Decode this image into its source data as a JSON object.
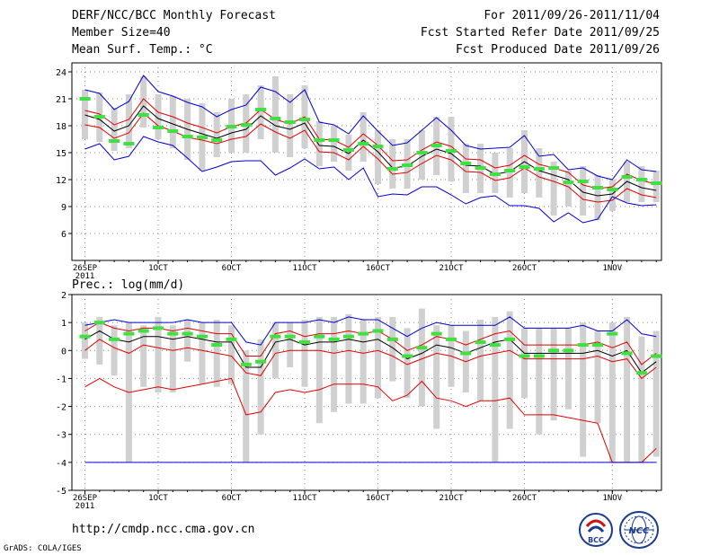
{
  "header": {
    "title": "DERF/NCC/BCC Monthly Forecast",
    "member_size": "Member Size=40",
    "temp_label": "Mean Surf. Temp.: °C",
    "period": "For 2011/09/26-2011/11/04",
    "start_date": "Fcst Started Refer Date 2011/09/25",
    "produce_date": "Fcst Produced Date 2011/09/26"
  },
  "footer": {
    "url": "http://cmdp.ncc.cma.gov.cn",
    "grads": "GrADS: COLA/IGES",
    "logo_bcc": "BCC",
    "logo_ncc": "NCC"
  },
  "colors": {
    "ensemble_mean": "#000000",
    "one_sigma": "#e00000",
    "extreme": "#0000d0",
    "member_range": "#d0d0d0",
    "climate": "#40e040"
  },
  "chart_data": [
    {
      "type": "line",
      "title": "Mean Surf. Temp.: °C",
      "ylabel": "°C",
      "ylim": [
        3,
        25
      ],
      "yticks": [
        6,
        9,
        12,
        15,
        18,
        21,
        24
      ],
      "xticks": [
        {
          "day": 0,
          "label": "26SEP",
          "sub": "2011"
        },
        {
          "day": 5,
          "label": "1OCT",
          "sub": ""
        },
        {
          "day": 10,
          "label": "6OCT",
          "sub": ""
        },
        {
          "day": 15,
          "label": "11OCT",
          "sub": ""
        },
        {
          "day": 20,
          "label": "16OCT",
          "sub": ""
        },
        {
          "day": 25,
          "label": "21OCT",
          "sub": ""
        },
        {
          "day": 30,
          "label": "26OCT",
          "sub": ""
        },
        {
          "day": 36,
          "label": "1NOV",
          "sub": ""
        }
      ],
      "n_days": 40,
      "series": [
        {
          "name": "ensemble mean",
          "role": "mean",
          "values": [
            19.2,
            18.7,
            17.4,
            18.0,
            20.2,
            18.8,
            18.2,
            17.6,
            17.1,
            16.6,
            17.2,
            17.6,
            19.1,
            18.0,
            17.6,
            18.3,
            15.8,
            15.7,
            14.9,
            16.4,
            15.1,
            13.3,
            13.5,
            14.6,
            15.4,
            14.9,
            13.6,
            13.5,
            12.6,
            12.9,
            14.0,
            13.0,
            12.5,
            12.0,
            10.6,
            10.2,
            10.4,
            11.8,
            11.1,
            10.8
          ]
        },
        {
          "name": "+1 sigma",
          "role": "upper",
          "values": [
            19.7,
            19.3,
            18.1,
            18.7,
            21.0,
            19.5,
            19.0,
            18.3,
            17.8,
            17.2,
            17.9,
            18.3,
            19.8,
            18.7,
            18.2,
            19.0,
            16.5,
            16.4,
            15.6,
            17.1,
            15.8,
            14.1,
            14.2,
            15.3,
            16.2,
            15.7,
            14.3,
            14.2,
            13.3,
            13.6,
            14.7,
            13.7,
            13.3,
            12.8,
            11.4,
            11.0,
            11.2,
            12.6,
            11.9,
            11.5
          ]
        },
        {
          "name": "-1 sigma",
          "role": "lower",
          "values": [
            18.1,
            17.8,
            16.6,
            17.2,
            19.4,
            18.0,
            17.4,
            16.7,
            16.4,
            16.0,
            16.5,
            16.8,
            18.2,
            17.3,
            16.6,
            17.5,
            15.1,
            15.0,
            14.2,
            15.7,
            14.3,
            12.6,
            12.8,
            13.8,
            14.7,
            14.2,
            12.9,
            12.8,
            11.9,
            12.2,
            13.3,
            12.3,
            11.8,
            11.2,
            9.8,
            9.5,
            9.7,
            11.0,
            10.3,
            10.0
          ]
        },
        {
          "name": "maximum",
          "role": "max",
          "values": [
            22.0,
            21.6,
            19.8,
            20.7,
            23.6,
            21.8,
            21.3,
            20.6,
            20.1,
            19.0,
            19.8,
            20.3,
            22.3,
            21.8,
            20.6,
            22.0,
            18.4,
            18.1,
            17.1,
            19.1,
            17.4,
            15.8,
            16.1,
            17.5,
            18.9,
            17.5,
            15.8,
            15.4,
            15.5,
            15.6,
            16.9,
            14.6,
            14.8,
            13.1,
            13.3,
            12.4,
            12.0,
            14.2,
            13.1,
            12.9
          ]
        },
        {
          "name": "minimum",
          "role": "min",
          "values": [
            15.4,
            16.0,
            14.2,
            14.6,
            16.8,
            16.2,
            15.8,
            14.4,
            12.9,
            13.4,
            14.0,
            14.1,
            14.1,
            12.5,
            13.3,
            14.3,
            13.2,
            13.4,
            12.0,
            13.3,
            10.1,
            10.4,
            10.3,
            11.2,
            11.2,
            10.3,
            9.3,
            10.0,
            10.2,
            9.1,
            9.1,
            8.8,
            7.3,
            8.3,
            7.2,
            7.6,
            10.1,
            9.4,
            9.1,
            9.2
          ]
        },
        {
          "name": "climate",
          "role": "climate",
          "values": [
            21.0,
            19.0,
            16.3,
            16.0,
            19.2,
            17.8,
            17.4,
            16.8,
            16.7,
            16.4,
            17.9,
            18.1,
            19.8,
            18.8,
            18.4,
            18.7,
            16.4,
            16.4,
            15.3,
            16.0,
            15.7,
            13.2,
            13.6,
            15.0,
            15.8,
            15.2,
            13.8,
            13.3,
            12.6,
            13.0,
            13.4,
            13.2,
            13.3,
            11.7,
            11.8,
            11.1,
            10.9,
            12.3,
            12.0,
            11.6
          ]
        }
      ],
      "member_range": {
        "low": [
          16.5,
          16.2,
          15.2,
          15.5,
          17.8,
          16.5,
          15.5,
          14.2,
          13.0,
          14.5,
          15.0,
          15.0,
          16.5,
          15.0,
          14.5,
          15.5,
          13.5,
          14.0,
          13.0,
          14.0,
          11.5,
          11.0,
          11.0,
          12.0,
          12.5,
          11.8,
          10.5,
          10.5,
          10.5,
          10.0,
          10.5,
          10.0,
          8.0,
          9.0,
          8.0,
          7.5,
          8.5,
          9.5,
          9.5,
          9.5
        ],
        "high": [
          22.0,
          21.7,
          20.0,
          21.5,
          23.5,
          21.5,
          21.3,
          21.0,
          20.5,
          19.5,
          21.0,
          21.5,
          22.5,
          23.5,
          21.5,
          22.5,
          18.5,
          18.0,
          17.0,
          19.5,
          17.5,
          16.5,
          16.5,
          17.5,
          19.0,
          19.0,
          16.0,
          16.0,
          15.0,
          15.5,
          17.5,
          15.5,
          14.0,
          13.0,
          13.5,
          12.5,
          12.0,
          14.0,
          13.5,
          13.0
        ]
      }
    },
    {
      "type": "line",
      "title": "Prec.: log(mm/d)",
      "ylabel": "log(mm/d)",
      "ylim": [
        -5,
        2
      ],
      "yticks": [
        -5,
        -4,
        -3,
        -2,
        -1,
        0,
        1,
        2
      ],
      "xticks": [
        {
          "day": 0,
          "label": "26SEP",
          "sub": "2011"
        },
        {
          "day": 5,
          "label": "1OCT",
          "sub": ""
        },
        {
          "day": 10,
          "label": "6OCT",
          "sub": ""
        },
        {
          "day": 15,
          "label": "11OCT",
          "sub": ""
        },
        {
          "day": 20,
          "label": "16OCT",
          "sub": ""
        },
        {
          "day": 25,
          "label": "21OCT",
          "sub": ""
        },
        {
          "day": 30,
          "label": "26OCT",
          "sub": ""
        },
        {
          "day": 36,
          "label": "1NOV",
          "sub": ""
        }
      ],
      "n_days": 40,
      "series": [
        {
          "name": "ensemble mean",
          "role": "mean",
          "values": [
            0.4,
            0.7,
            0.4,
            0.3,
            0.5,
            0.5,
            0.4,
            0.5,
            0.4,
            0.3,
            0.3,
            -0.6,
            -0.6,
            0.3,
            0.4,
            0.2,
            0.3,
            0.3,
            0.4,
            0.3,
            0.4,
            0.1,
            -0.3,
            -0.1,
            0.2,
            0.1,
            -0.1,
            0.1,
            0.3,
            0.4,
            -0.1,
            -0.1,
            -0.1,
            -0.1,
            -0.1,
            0.0,
            -0.2,
            0.0,
            -0.8,
            -0.4
          ]
        },
        {
          "name": "+1 sigma",
          "role": "upper",
          "values": [
            0.7,
            1.0,
            0.8,
            0.7,
            0.8,
            0.8,
            0.7,
            0.8,
            0.7,
            0.6,
            0.6,
            -0.2,
            -0.2,
            0.6,
            0.7,
            0.5,
            0.6,
            0.6,
            0.7,
            0.6,
            0.7,
            0.4,
            0.0,
            0.2,
            0.5,
            0.4,
            0.2,
            0.4,
            0.6,
            0.7,
            0.2,
            0.2,
            0.2,
            0.2,
            0.2,
            0.3,
            0.1,
            0.3,
            -0.5,
            -0.1
          ]
        },
        {
          "name": "-1 sigma",
          "role": "lower",
          "values": [
            0.0,
            0.4,
            0.1,
            -0.1,
            0.2,
            0.1,
            0.0,
            0.1,
            0.0,
            -0.1,
            -0.2,
            -0.8,
            -0.9,
            -0.1,
            0.0,
            0.0,
            0.0,
            -0.1,
            0.0,
            -0.1,
            0.0,
            -0.2,
            -0.5,
            -0.3,
            -0.1,
            -0.2,
            -0.4,
            -0.2,
            -0.1,
            0.0,
            -0.3,
            -0.3,
            -0.3,
            -0.3,
            -0.3,
            -0.2,
            -0.4,
            -0.3,
            -1.0,
            -0.6
          ]
        },
        {
          "name": "lower envelope",
          "role": "lower2",
          "values": [
            -1.3,
            -1.0,
            -1.3,
            -1.5,
            -1.4,
            -1.3,
            -1.4,
            -1.3,
            -1.2,
            -1.1,
            -1.0,
            -2.3,
            -2.2,
            -1.5,
            -1.4,
            -1.5,
            -1.4,
            -1.2,
            -1.2,
            -1.2,
            -1.3,
            -1.8,
            -1.6,
            -1.1,
            -1.7,
            -1.8,
            -2.0,
            -1.8,
            -1.8,
            -1.7,
            -2.3,
            -2.3,
            -2.3,
            -2.4,
            -2.5,
            -2.6,
            -4.0,
            -4.0,
            -4.0,
            -3.5
          ]
        },
        {
          "name": "maximum",
          "role": "max",
          "values": [
            0.9,
            1.0,
            1.1,
            1.0,
            1.0,
            1.0,
            1.0,
            1.1,
            1.0,
            1.0,
            1.0,
            0.3,
            0.2,
            1.0,
            1.0,
            1.0,
            1.1,
            1.0,
            1.2,
            1.1,
            1.1,
            0.8,
            0.5,
            0.8,
            1.0,
            0.9,
            0.9,
            0.9,
            0.9,
            1.2,
            0.8,
            0.8,
            0.8,
            0.8,
            0.9,
            0.7,
            0.7,
            1.1,
            0.6,
            0.5
          ]
        },
        {
          "name": "minimum",
          "role": "min",
          "values": [
            -4.0,
            -4.0,
            -4.0,
            -4.0,
            -4.0,
            -4.0,
            -4.0,
            -4.0,
            -4.0,
            -4.0,
            -4.0,
            -4.0,
            -4.0,
            -4.0,
            -4.0,
            -4.0,
            -4.0,
            -4.0,
            -4.0,
            -4.0,
            -4.0,
            -4.0,
            -4.0,
            -4.0,
            -4.0,
            -4.0,
            -4.0,
            -4.0,
            -4.0,
            -4.0,
            -4.0,
            -4.0,
            -4.0,
            -4.0,
            -4.0,
            -4.0,
            -4.0,
            -4.0,
            -4.0,
            -4.0
          ]
        },
        {
          "name": "climate",
          "role": "climate",
          "values": [
            0.5,
            1.0,
            0.4,
            0.6,
            0.7,
            0.8,
            0.6,
            0.6,
            0.5,
            0.2,
            0.4,
            -0.5,
            -0.4,
            0.5,
            0.5,
            0.3,
            0.5,
            0.4,
            0.5,
            0.6,
            0.7,
            0.4,
            -0.2,
            0.1,
            0.6,
            0.4,
            -0.1,
            0.3,
            0.2,
            0.4,
            -0.2,
            -0.2,
            0.0,
            0.0,
            0.2,
            0.2,
            0.6,
            -0.1,
            -0.8,
            -0.2
          ]
        }
      ],
      "member_range": {
        "low": [
          -0.3,
          -0.5,
          -0.9,
          -4.0,
          -1.3,
          -1.5,
          -1.5,
          -0.4,
          -1.2,
          -1.3,
          -1.2,
          -4.0,
          -3.0,
          -1.0,
          -0.6,
          -1.3,
          -2.6,
          -2.2,
          -1.9,
          -1.9,
          -1.7,
          -1.1,
          -1.7,
          -2.0,
          -2.8,
          -1.3,
          -1.5,
          -1.8,
          -4.0,
          -2.8,
          -1.7,
          -3.0,
          -2.5,
          -2.1,
          -3.8,
          -2.6,
          -4.0,
          -4.0,
          -4.0,
          -3.8
        ],
        "high": [
          1.0,
          1.2,
          0.9,
          1.0,
          0.9,
          1.2,
          0.9,
          1.1,
          1.0,
          1.1,
          0.9,
          0.0,
          0.4,
          1.0,
          1.0,
          1.1,
          1.2,
          1.2,
          1.3,
          1.1,
          1.2,
          1.2,
          0.8,
          1.5,
          0.9,
          0.9,
          0.7,
          1.1,
          1.2,
          1.4,
          0.8,
          0.8,
          0.8,
          0.8,
          1.0,
          0.7,
          1.0,
          1.2,
          0.5,
          0.7
        ]
      }
    }
  ]
}
